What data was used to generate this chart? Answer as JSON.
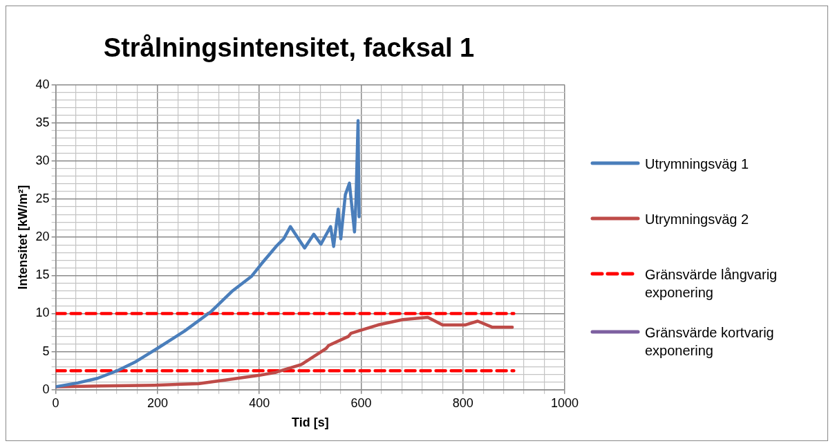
{
  "chart_data": {
    "type": "line",
    "title": "Strålningsintensitet, facksal 1",
    "xlabel": "Tid [s]",
    "ylabel": "Intensitet [kW/m²]",
    "xlim": [
      0,
      1000
    ],
    "ylim": [
      0,
      40
    ],
    "xticks": [
      0,
      {
        "value": 40,
        "label": null
      },
      {
        "value": 80,
        "label": null
      },
      {
        "value": 120,
        "label": null
      },
      {
        "value": 160,
        "label": null
      },
      200,
      {
        "value": 240,
        "label": null
      },
      {
        "value": 280,
        "label": null
      },
      {
        "value": 320,
        "label": null
      },
      {
        "value": 360,
        "label": null
      },
      400,
      {
        "value": 440,
        "label": null
      },
      {
        "value": 480,
        "label": null
      },
      {
        "value": 520,
        "label": null
      },
      {
        "value": 560,
        "label": null
      },
      600,
      {
        "value": 640,
        "label": null
      },
      {
        "value": 680,
        "label": null
      },
      {
        "value": 720,
        "label": null
      },
      {
        "value": 760,
        "label": null
      },
      800,
      {
        "value": 840,
        "label": null
      },
      {
        "value": 880,
        "label": null
      },
      {
        "value": 920,
        "label": null
      },
      {
        "value": 960,
        "label": null
      },
      1000
    ],
    "yticks": [
      0,
      {
        "value": 1,
        "label": null
      },
      {
        "value": 2,
        "label": null
      },
      {
        "value": 3,
        "label": null
      },
      {
        "value": 4,
        "label": null
      },
      5,
      {
        "value": 6,
        "label": null
      },
      {
        "value": 7,
        "label": null
      },
      {
        "value": 8,
        "label": null
      },
      {
        "value": 9,
        "label": null
      },
      10,
      {
        "value": 11,
        "label": null
      },
      {
        "value": 12,
        "label": null
      },
      {
        "value": 13,
        "label": null
      },
      {
        "value": 14,
        "label": null
      },
      15,
      {
        "value": 16,
        "label": null
      },
      {
        "value": 17,
        "label": null
      },
      {
        "value": 18,
        "label": null
      },
      {
        "value": 19,
        "label": null
      },
      20,
      {
        "value": 21,
        "label": null
      },
      {
        "value": 22,
        "label": null
      },
      {
        "value": 23,
        "label": null
      },
      {
        "value": 24,
        "label": null
      },
      25,
      {
        "value": 26,
        "label": null
      },
      {
        "value": 27,
        "label": null
      },
      {
        "value": 28,
        "label": null
      },
      {
        "value": 29,
        "label": null
      },
      30,
      {
        "value": 31,
        "label": null
      },
      {
        "value": 32,
        "label": null
      },
      {
        "value": 33,
        "label": null
      },
      {
        "value": 34,
        "label": null
      },
      35,
      {
        "value": 36,
        "label": null
      },
      {
        "value": 37,
        "label": null
      },
      {
        "value": 38,
        "label": null
      },
      {
        "value": 39,
        "label": null
      },
      40
    ],
    "grid": true,
    "legend": "right",
    "marker": "none",
    "series": [
      {
        "name": "Utrymningsväg 1",
        "color": "#4a7ebb",
        "line_style": "solid",
        "x": [
          0,
          43,
          82,
          121,
          155,
          199,
          253,
          306,
          346,
          385,
          404,
          433,
          448,
          461,
          489,
          507,
          521,
          540,
          546,
          555,
          560,
          569,
          577,
          587,
          590,
          594,
          596
        ],
        "values": [
          0.4,
          0.9,
          1.5,
          2.5,
          3.6,
          5.4,
          7.7,
          10.3,
          12.9,
          14.9,
          16.5,
          18.8,
          19.8,
          21.4,
          18.6,
          20.4,
          19.1,
          21.4,
          18.8,
          23.7,
          19.8,
          25.6,
          27.1,
          20.7,
          25.0,
          35.3,
          22.7
        ]
      },
      {
        "name": "Utrymningsväg 2",
        "color": "#be4b48",
        "line_style": "solid",
        "x": [
          0,
          90,
          193,
          280,
          335,
          400,
          433,
          482,
          487,
          531,
          536,
          575,
          580,
          594,
          633,
          682,
          731,
          760,
          804,
          829,
          858,
          897
        ],
        "values": [
          0.4,
          0.5,
          0.6,
          0.8,
          1.3,
          1.9,
          2.3,
          3.3,
          3.5,
          5.4,
          5.8,
          7.0,
          7.4,
          7.7,
          8.5,
          9.2,
          9.5,
          8.5,
          8.5,
          9.0,
          8.2,
          8.2
        ]
      },
      {
        "name": "Gränsvärde långvarig exponering",
        "color": "#ff0000",
        "line_style": "dashed",
        "x": [
          0,
          900
        ],
        "values": [
          2.5,
          2.5
        ]
      },
      {
        "color": "#ff0000",
        "line_style": "dashed",
        "x": [
          0,
          900
        ],
        "values": [
          10,
          10
        ]
      },
      {
        "name": "Gränsvärde kortvarig exponering",
        "color": "#7d60a0",
        "line_style": "solid"
      }
    ]
  }
}
